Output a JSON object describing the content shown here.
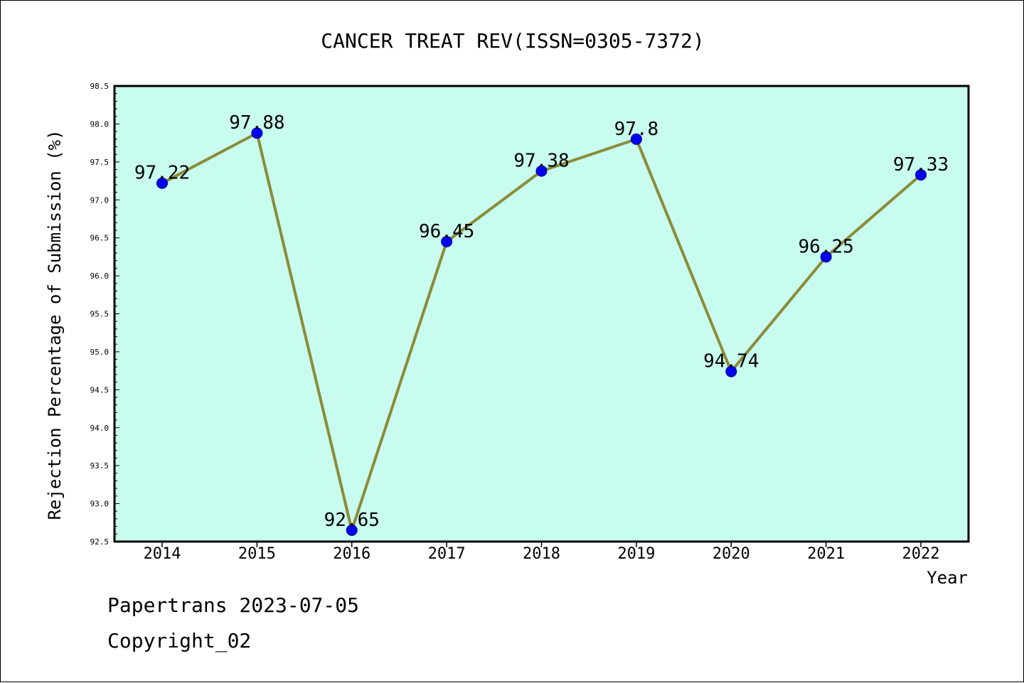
{
  "chart_data": {
    "type": "line",
    "title": "CANCER TREAT REV(ISSN=0305-7372)",
    "xlabel": "Year",
    "ylabel": "Rejection Percentage of Submission (%)",
    "categories": [
      "2014",
      "2015",
      "2016",
      "2017",
      "2018",
      "2019",
      "2020",
      "2021",
      "2022"
    ],
    "values": [
      97.22,
      97.88,
      92.65,
      96.45,
      97.38,
      97.8,
      94.74,
      96.25,
      97.33
    ],
    "data_labels": [
      "97.22",
      "97.88",
      "92.65",
      "96.45",
      "97.38",
      "97.8",
      "94.74",
      "96.25",
      "97.33"
    ],
    "ylim": [
      92.5,
      98.5
    ],
    "yticks": [
      "92.5",
      "93.0",
      "93.5",
      "94.0",
      "94.5",
      "95.0",
      "95.5",
      "96.0",
      "96.5",
      "97.0",
      "97.5",
      "98.0",
      "98.5"
    ],
    "grid": false,
    "colors": {
      "plot_background": "#c8fcee",
      "line": "#8b8b3a",
      "marker": "#0000ee",
      "marker_edge": "#00008b"
    }
  },
  "footer": {
    "line1": "Papertrans 2023-07-05",
    "line2": "Copyright_02"
  }
}
